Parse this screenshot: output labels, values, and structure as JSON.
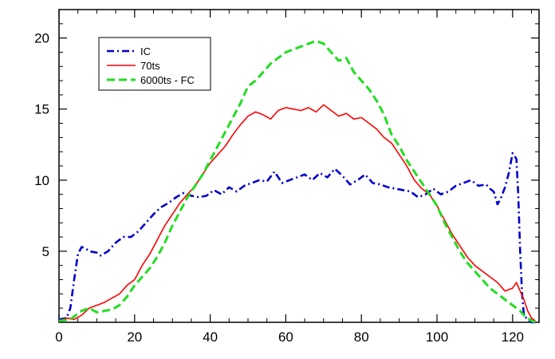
{
  "chart_data": {
    "type": "line",
    "title": "",
    "xlabel": "",
    "ylabel": "",
    "xlim": [
      0,
      127
    ],
    "ylim": [
      0,
      22
    ],
    "xticks": [
      0,
      20,
      40,
      60,
      80,
      100,
      120
    ],
    "xtick_labels": [
      "0",
      "20",
      "40",
      "60",
      "80",
      "100",
      "120"
    ],
    "yticks": [
      5,
      10,
      15,
      20
    ],
    "ytick_labels": [
      "5",
      "10",
      "15",
      "20"
    ],
    "grid": false,
    "legend_position": "top-left",
    "series": [
      {
        "name": "IC",
        "color": "#0000cc",
        "dash": "dash-dot",
        "x": [
          0,
          2,
          3,
          4,
          5,
          6,
          7,
          8,
          10,
          11,
          13,
          15,
          17,
          19,
          21,
          23,
          25,
          27,
          29,
          31,
          33,
          35,
          37,
          39,
          41,
          43,
          45,
          47,
          49,
          51,
          53,
          55,
          57,
          59,
          61,
          63,
          65,
          67,
          69,
          71,
          73,
          75,
          77,
          79,
          81,
          83,
          85,
          87,
          89,
          91,
          93,
          95,
          97,
          99,
          101,
          103,
          105,
          107,
          109,
          111,
          113,
          114,
          115,
          116,
          117,
          118,
          119,
          120,
          121,
          121.5,
          122,
          122.5,
          123,
          124,
          125,
          126
        ],
        "y": [
          0.2,
          0.3,
          1.0,
          3.0,
          4.8,
          5.3,
          5.2,
          5.0,
          4.9,
          4.7,
          5.0,
          5.6,
          6.0,
          6.0,
          6.4,
          7.0,
          7.6,
          8.1,
          8.4,
          8.8,
          9.1,
          8.9,
          8.8,
          8.9,
          9.3,
          9.0,
          9.5,
          9.2,
          9.6,
          9.8,
          10.0,
          9.9,
          10.6,
          9.8,
          10.0,
          10.2,
          10.4,
          10.0,
          10.5,
          10.2,
          10.8,
          10.3,
          9.7,
          10.0,
          10.4,
          9.8,
          9.7,
          9.5,
          9.4,
          9.3,
          9.2,
          8.8,
          9.0,
          9.4,
          9.0,
          9.2,
          9.6,
          9.8,
          10.0,
          9.6,
          9.7,
          9.4,
          9.2,
          8.3,
          8.8,
          9.5,
          10.5,
          11.9,
          11.5,
          9.0,
          5.0,
          2.0,
          0.5,
          0.2,
          0.0,
          0.0
        ]
      },
      {
        "name": "70ts",
        "color": "#ff0000",
        "dash": "solid",
        "x": [
          0,
          2,
          4,
          6,
          8,
          10,
          12,
          14,
          16,
          18,
          20,
          22,
          24,
          26,
          28,
          30,
          32,
          34,
          36,
          38,
          40,
          42,
          44,
          46,
          48,
          50,
          52,
          54,
          56,
          58,
          60,
          62,
          64,
          66,
          68,
          70,
          72,
          74,
          76,
          78,
          80,
          82,
          84,
          86,
          88,
          90,
          92,
          94,
          96,
          98,
          100,
          102,
          104,
          106,
          108,
          110,
          112,
          114,
          116,
          118,
          120,
          121,
          122,
          123,
          124,
          125,
          126
        ],
        "y": [
          0.1,
          0.3,
          0.2,
          0.5,
          1.0,
          1.2,
          1.4,
          1.7,
          2.0,
          2.6,
          3.0,
          4.0,
          4.8,
          5.8,
          6.8,
          7.6,
          8.4,
          9.0,
          9.6,
          10.4,
          11.2,
          11.8,
          12.4,
          13.2,
          13.9,
          14.5,
          14.8,
          14.6,
          14.3,
          14.9,
          15.1,
          15.0,
          14.9,
          15.1,
          14.8,
          15.3,
          14.9,
          14.5,
          14.7,
          14.3,
          14.4,
          14.0,
          13.6,
          13.0,
          12.6,
          11.8,
          11.0,
          10.0,
          9.4,
          9.0,
          8.2,
          7.2,
          6.2,
          5.4,
          4.6,
          4.0,
          3.6,
          3.2,
          2.8,
          2.2,
          2.4,
          2.8,
          2.2,
          1.6,
          0.8,
          0.3,
          0.1
        ]
      },
      {
        "name": "6000ts - FC",
        "color": "#22dd22",
        "dash": "dashed",
        "x": [
          0,
          3,
          6,
          8,
          10,
          12,
          14,
          16,
          18,
          20,
          22,
          24,
          26,
          28,
          30,
          32,
          34,
          36,
          38,
          40,
          42,
          44,
          46,
          48,
          50,
          52,
          54,
          56,
          58,
          60,
          62,
          64,
          66,
          68,
          70,
          72,
          74,
          76,
          78,
          80,
          82,
          84,
          86,
          88,
          90,
          92,
          94,
          96,
          98,
          100,
          102,
          104,
          106,
          108,
          110,
          112,
          114,
          116,
          118,
          120,
          122,
          123,
          124,
          125,
          126
        ],
        "y": [
          0.1,
          0.2,
          0.8,
          1.0,
          0.7,
          0.8,
          0.9,
          1.2,
          1.8,
          2.6,
          3.2,
          3.8,
          4.6,
          5.6,
          6.8,
          7.8,
          8.8,
          9.6,
          10.4,
          11.4,
          12.4,
          13.4,
          14.4,
          15.4,
          16.6,
          17.0,
          17.6,
          18.2,
          18.6,
          19.0,
          19.2,
          19.4,
          19.6,
          19.8,
          19.6,
          19.0,
          18.4,
          18.6,
          17.6,
          17.0,
          16.4,
          15.6,
          14.6,
          13.2,
          12.4,
          11.4,
          10.6,
          9.8,
          9.0,
          8.2,
          7.0,
          6.0,
          5.0,
          4.2,
          3.6,
          3.0,
          2.4,
          2.0,
          1.6,
          1.2,
          0.8,
          0.5,
          0.3,
          0.1,
          0.0
        ]
      }
    ]
  }
}
